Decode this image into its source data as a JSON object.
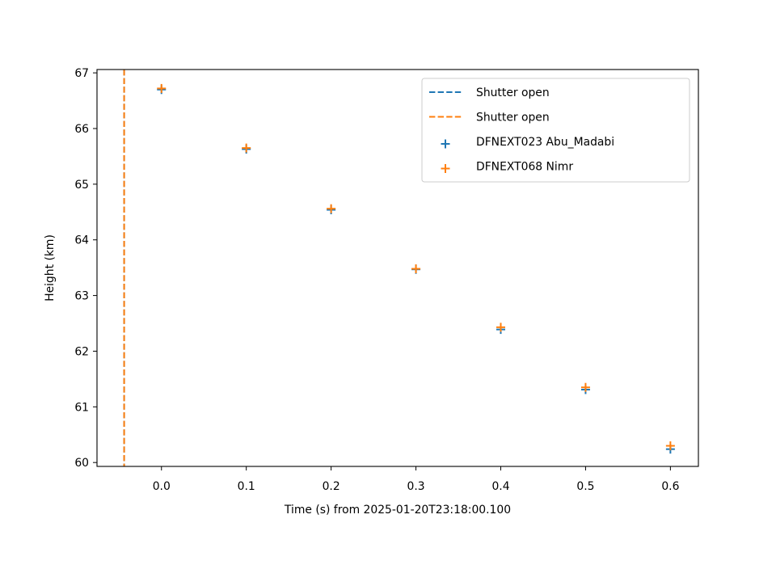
{
  "chart_data": {
    "type": "scatter",
    "title": "",
    "xlabel": "Time (s) from 2025-01-20T23:18:00.100",
    "ylabel": "Height (km)",
    "xlim": [
      -0.076,
      0.633
    ],
    "ylim": [
      59.93,
      67.06
    ],
    "xticks": [
      0.0,
      0.1,
      0.2,
      0.3,
      0.4,
      0.5,
      0.6
    ],
    "yticks": [
      60,
      61,
      62,
      63,
      64,
      65,
      66,
      67
    ],
    "xtick_labels": [
      "0.0",
      "0.1",
      "0.2",
      "0.3",
      "0.4",
      "0.5",
      "0.6"
    ],
    "ytick_labels": [
      "60",
      "61",
      "62",
      "63",
      "64",
      "65",
      "66",
      "67"
    ],
    "grid": false,
    "legend_position": "top-right",
    "vlines": [
      {
        "name": "Shutter open",
        "x": -0.044,
        "color": "#1f77b4",
        "style": "dashed"
      },
      {
        "name": "Shutter open",
        "x": -0.044,
        "color": "#ff7f0e",
        "style": "dashed"
      }
    ],
    "series": [
      {
        "name": "DFNEXT023 Abu_Madabi",
        "marker": "plus",
        "color": "#1f77b4",
        "x": [
          0.0,
          0.1,
          0.2,
          0.3,
          0.4,
          0.5,
          0.6
        ],
        "y": [
          66.7,
          65.63,
          64.54,
          63.47,
          62.39,
          61.31,
          60.24
        ]
      },
      {
        "name": "DFNEXT068 Nimr",
        "marker": "plus",
        "color": "#ff7f0e",
        "x": [
          0.0,
          0.1,
          0.2,
          0.3,
          0.4,
          0.5,
          0.6
        ],
        "y": [
          66.72,
          65.65,
          64.56,
          63.48,
          62.43,
          61.35,
          60.3
        ]
      }
    ]
  }
}
